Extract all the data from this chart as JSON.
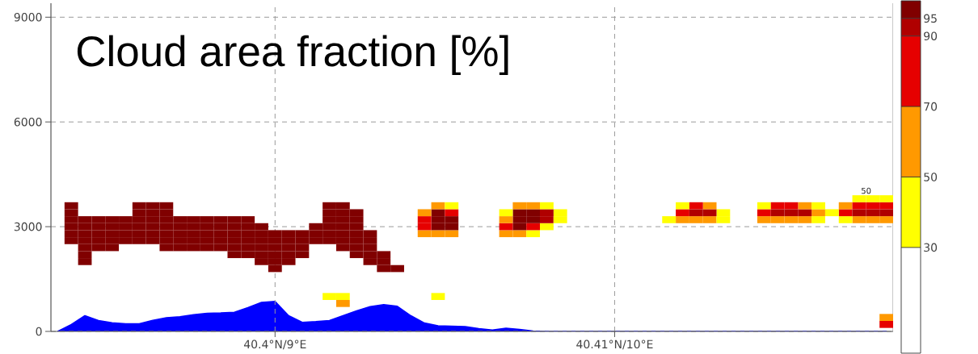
{
  "chart_data": {
    "type": "scatter",
    "title": "Cloud area fraction [%]",
    "categories": [
      null,
      null,
      null,
      null,
      null,
      null,
      null,
      null,
      null,
      null,
      null,
      null,
      null,
      null,
      null,
      null,
      "40.4°N/9°E",
      null,
      null,
      null,
      null,
      null,
      null,
      null,
      null,
      null,
      null,
      null,
      null,
      null,
      null,
      null,
      null,
      null,
      null,
      null,
      null,
      null,
      null,
      null,
      null,
      "40.41°N/10°E",
      null,
      null,
      null,
      null,
      null,
      null,
      null,
      null,
      null,
      null,
      null,
      null,
      null,
      null,
      null,
      null,
      null,
      null,
      null,
      null
    ],
    "ylim": [
      0,
      9400
    ],
    "yticks": [
      0,
      3000,
      6000,
      9000
    ],
    "grid": true,
    "marker": "square",
    "clim": [
      0,
      100
    ],
    "cticks": [
      30,
      50,
      70,
      90,
      95
    ],
    "annotations": [
      {
        "text": "50",
        "y": 3860
      }
    ],
    "series": [
      {
        "type": "area",
        "color": "#0000ff",
        "marker": "none",
        "values": [
          0,
          200,
          450,
          310,
          250,
          220,
          220,
          320,
          390,
          420,
          480,
          520,
          530,
          550,
          680,
          830,
          860,
          450,
          260,
          280,
          310,
          450,
          590,
          710,
          770,
          720,
          450,
          240,
          160,
          150,
          140,
          80,
          40,
          90,
          60,
          10,
          0,
          0,
          0,
          0,
          0,
          0,
          0,
          0,
          0,
          0,
          0,
          0,
          0,
          0,
          0,
          0,
          0,
          0,
          0,
          0,
          0,
          0,
          0,
          0,
          0,
          0
        ]
      },
      {
        "color": "#e60000",
        "values": [
          null,
          null,
          null,
          null,
          null,
          null,
          null,
          null,
          null,
          null,
          null,
          null,
          null,
          null,
          null,
          null,
          null,
          null,
          null,
          null,
          null,
          null,
          null,
          null,
          null,
          null,
          null,
          null,
          null,
          null,
          null,
          null,
          null,
          null,
          null,
          null,
          null,
          null,
          null,
          null,
          null,
          null,
          null,
          null,
          null,
          null,
          null,
          null,
          null,
          null,
          null,
          null,
          null,
          null,
          null,
          null,
          null,
          null,
          null,
          null,
          null,
          200
        ]
      },
      {
        "color": "#ff9900",
        "values": [
          null,
          null,
          null,
          null,
          null,
          null,
          null,
          null,
          null,
          null,
          null,
          null,
          null,
          null,
          null,
          null,
          null,
          null,
          null,
          null,
          null,
          null,
          null,
          null,
          null,
          null,
          null,
          null,
          null,
          null,
          null,
          null,
          null,
          null,
          null,
          null,
          null,
          null,
          null,
          null,
          null,
          null,
          null,
          null,
          null,
          null,
          null,
          null,
          null,
          null,
          null,
          null,
          null,
          null,
          null,
          null,
          null,
          null,
          null,
          null,
          null,
          400
        ]
      },
      {
        "color": "#ff9900",
        "values": [
          null,
          null,
          null,
          null,
          null,
          null,
          null,
          null,
          null,
          null,
          null,
          null,
          null,
          null,
          null,
          null,
          null,
          null,
          null,
          null,
          null,
          800,
          null,
          null,
          null,
          null,
          null,
          null,
          null,
          null,
          null,
          null,
          null,
          null,
          null,
          null,
          null,
          null,
          null,
          null,
          null,
          null,
          null,
          null,
          null,
          null,
          null,
          null,
          null,
          null,
          null,
          null,
          null,
          null,
          null,
          null,
          null,
          null,
          null,
          null,
          null,
          null
        ]
      },
      {
        "color": "#ffff00",
        "values": [
          null,
          null,
          null,
          null,
          null,
          null,
          null,
          null,
          null,
          null,
          null,
          null,
          null,
          null,
          null,
          null,
          null,
          null,
          null,
          null,
          1000,
          1000,
          null,
          null,
          null,
          null,
          null,
          null,
          1000,
          null,
          null,
          null,
          null,
          null,
          null,
          null,
          null,
          null,
          null,
          null,
          null,
          null,
          null,
          null,
          null,
          null,
          null,
          null,
          null,
          null,
          null,
          null,
          null,
          null,
          null,
          null,
          null,
          null,
          null,
          null,
          null,
          null
        ]
      },
      {
        "color": "#800000",
        "values": [
          null,
          null,
          null,
          null,
          null,
          null,
          null,
          null,
          null,
          null,
          null,
          null,
          null,
          null,
          null,
          null,
          1800,
          null,
          null,
          null,
          null,
          null,
          null,
          null,
          1800,
          1800,
          null,
          null,
          null,
          null,
          null,
          null,
          null,
          null,
          null,
          null,
          null,
          null,
          null,
          null,
          null,
          null,
          null,
          null,
          null,
          null,
          null,
          null,
          null,
          null,
          null,
          null,
          null,
          null,
          null,
          null,
          null,
          null,
          null,
          null,
          null,
          null
        ]
      },
      {
        "color": "#800000",
        "values": [
          null,
          null,
          2000,
          null,
          null,
          null,
          null,
          null,
          null,
          null,
          null,
          null,
          null,
          null,
          null,
          2000,
          2000,
          2000,
          null,
          null,
          null,
          null,
          null,
          2000,
          2000,
          null,
          null,
          null,
          null,
          null,
          null,
          null,
          null,
          null,
          null,
          null,
          null,
          null,
          null,
          null,
          null,
          null,
          null,
          null,
          null,
          null,
          null,
          null,
          null,
          null,
          null,
          null,
          null,
          null,
          null,
          null,
          null,
          null,
          null,
          null,
          null,
          null
        ]
      },
      {
        "color": "#800000",
        "values": [
          null,
          null,
          2200,
          null,
          null,
          null,
          null,
          null,
          null,
          null,
          null,
          null,
          null,
          2200,
          2200,
          2200,
          2200,
          2200,
          2200,
          null,
          null,
          null,
          2200,
          2200,
          2200,
          null,
          null,
          null,
          null,
          null,
          null,
          null,
          null,
          null,
          null,
          null,
          null,
          null,
          null,
          null,
          null,
          null,
          null,
          null,
          null,
          null,
          null,
          null,
          null,
          null,
          null,
          null,
          null,
          null,
          null,
          null,
          null,
          null,
          null,
          null,
          null,
          null
        ]
      },
      {
        "color": "#800000",
        "values": [
          null,
          null,
          2400,
          2400,
          2400,
          null,
          null,
          null,
          2400,
          2400,
          2400,
          2400,
          2400,
          2400,
          2400,
          2400,
          2400,
          2400,
          2400,
          null,
          null,
          2400,
          2400,
          2400,
          null,
          null,
          null,
          null,
          null,
          null,
          null,
          null,
          null,
          null,
          null,
          null,
          null,
          null,
          null,
          null,
          null,
          null,
          null,
          null,
          null,
          null,
          null,
          null,
          null,
          null,
          null,
          null,
          null,
          null,
          null,
          null,
          null,
          null,
          null,
          null,
          null,
          null
        ]
      },
      {
        "color": "#800000",
        "values": [
          null,
          2600,
          2600,
          2600,
          2600,
          2600,
          2600,
          2600,
          2600,
          2600,
          2600,
          2600,
          2600,
          2600,
          2600,
          2600,
          2600,
          2600,
          2600,
          2600,
          2600,
          2600,
          2600,
          2600,
          null,
          null,
          null,
          null,
          null,
          null,
          null,
          null,
          null,
          null,
          null,
          null,
          null,
          null,
          null,
          null,
          null,
          null,
          null,
          null,
          null,
          null,
          null,
          null,
          null,
          null,
          null,
          null,
          null,
          null,
          null,
          null,
          null,
          null,
          null,
          null,
          null,
          null
        ]
      },
      {
        "values": [
          null,
          2800,
          2800,
          2800,
          2800,
          2800,
          2800,
          2800,
          2800,
          2800,
          2800,
          2800,
          2800,
          2800,
          2800,
          2800,
          2800,
          2800,
          2800,
          2800,
          2800,
          2800,
          2800,
          2800,
          null,
          null,
          null,
          2800,
          2800,
          2800,
          null,
          null,
          null,
          2800,
          2800,
          2800,
          null,
          null,
          null,
          null,
          null,
          null,
          null,
          null,
          null,
          null,
          null,
          null,
          null,
          null,
          null,
          null,
          null,
          null,
          null,
          null,
          null,
          null,
          null,
          null,
          null,
          null
        ],
        "colors": [
          null,
          "#800000",
          "#800000",
          "#800000",
          "#800000",
          "#800000",
          "#800000",
          "#800000",
          "#800000",
          "#800000",
          "#800000",
          "#800000",
          "#800000",
          "#800000",
          "#800000",
          "#800000",
          "#800000",
          "#800000",
          "#800000",
          "#800000",
          "#800000",
          "#800000",
          "#800000",
          "#800000",
          null,
          null,
          null,
          "#ff9900",
          "#ff9900",
          "#ff9900",
          null,
          null,
          null,
          "#ff9900",
          "#ff9900",
          "#ffff00",
          null,
          null,
          null,
          null,
          null,
          null,
          null,
          null,
          null,
          null,
          null,
          null,
          null,
          null,
          null,
          null,
          null,
          null,
          null,
          null,
          null,
          null,
          null,
          null,
          null,
          null
        ]
      },
      {
        "values": [
          null,
          3000,
          3000,
          3000,
          3000,
          3000,
          3000,
          3000,
          3000,
          3000,
          3000,
          3000,
          3000,
          3000,
          3000,
          3000,
          null,
          null,
          null,
          3000,
          3000,
          3000,
          3000,
          null,
          null,
          null,
          null,
          3000,
          3000,
          3000,
          null,
          null,
          null,
          3000,
          3000,
          3000,
          3000,
          null,
          null,
          null,
          null,
          null,
          null,
          null,
          null,
          null,
          null,
          null,
          null,
          null,
          null,
          null,
          null,
          null,
          null,
          null,
          null,
          null,
          null,
          null,
          null,
          null
        ],
        "colors": [
          null,
          "#800000",
          "#800000",
          "#800000",
          "#800000",
          "#800000",
          "#800000",
          "#800000",
          "#800000",
          "#800000",
          "#800000",
          "#800000",
          "#800000",
          "#800000",
          "#800000",
          "#800000",
          null,
          null,
          null,
          "#800000",
          "#800000",
          "#800000",
          "#800000",
          null,
          null,
          null,
          null,
          "#e60000",
          "#800000",
          "#800000",
          null,
          null,
          null,
          "#e60000",
          "#800000",
          "#e60000",
          "#ffff00",
          null,
          null,
          null,
          null,
          null,
          null,
          null,
          null,
          null,
          null,
          null,
          null,
          null,
          null,
          null,
          null,
          null,
          null,
          null,
          null,
          null,
          null,
          null,
          null,
          null
        ]
      },
      {
        "values": [
          null,
          3200,
          3200,
          3200,
          3200,
          3200,
          3200,
          3200,
          3200,
          3200,
          3200,
          3200,
          3200,
          3200,
          3200,
          null,
          null,
          null,
          null,
          null,
          3200,
          3200,
          3200,
          null,
          null,
          null,
          null,
          3200,
          3200,
          3200,
          null,
          null,
          null,
          3200,
          3200,
          3200,
          3200,
          3200,
          null,
          null,
          null,
          null,
          null,
          null,
          null,
          3200,
          3200,
          3200,
          3200,
          3200,
          null,
          null,
          3200,
          3200,
          3200,
          3200,
          3200,
          null,
          3200,
          3200,
          3200,
          3200
        ],
        "colors": [
          null,
          "#800000",
          "#800000",
          "#800000",
          "#800000",
          "#800000",
          "#800000",
          "#800000",
          "#800000",
          "#800000",
          "#800000",
          "#800000",
          "#800000",
          "#800000",
          "#800000",
          null,
          null,
          null,
          null,
          null,
          "#800000",
          "#800000",
          "#800000",
          null,
          null,
          null,
          null,
          "#e60000",
          "#800000",
          "#800000",
          null,
          null,
          null,
          "#ff9900",
          "#800000",
          "#800000",
          "#b00000",
          "#ffff00",
          null,
          null,
          null,
          null,
          null,
          null,
          null,
          "#ffff00",
          "#ff9900",
          "#ff9900",
          "#ff9900",
          "#ffff00",
          null,
          null,
          "#ff9900",
          "#ff9900",
          "#ff9900",
          "#ff9900",
          "#ffff00",
          null,
          "#ffff00",
          "#ff9900",
          "#ff9900",
          "#ff9900"
        ]
      },
      {
        "values": [
          null,
          3400,
          null,
          null,
          null,
          null,
          3400,
          3400,
          3400,
          null,
          null,
          null,
          null,
          null,
          null,
          null,
          null,
          null,
          null,
          null,
          3400,
          3400,
          3400,
          null,
          null,
          null,
          null,
          3400,
          3400,
          3400,
          null,
          null,
          null,
          3400,
          3400,
          3400,
          3400,
          3400,
          null,
          null,
          null,
          null,
          null,
          null,
          null,
          null,
          3400,
          3400,
          3400,
          3400,
          null,
          null,
          3400,
          3400,
          3400,
          3400,
          3400,
          3400,
          3400,
          3400,
          3400,
          3400
        ],
        "colors": [
          null,
          "#800000",
          null,
          null,
          null,
          null,
          "#800000",
          "#800000",
          "#800000",
          null,
          null,
          null,
          null,
          null,
          null,
          null,
          null,
          null,
          null,
          null,
          "#800000",
          "#800000",
          "#800000",
          null,
          null,
          null,
          null,
          "#ff9900",
          "#800000",
          "#e60000",
          null,
          null,
          null,
          "#ffff00",
          "#800000",
          "#800000",
          "#b00000",
          "#ffff00",
          null,
          null,
          null,
          null,
          null,
          null,
          null,
          null,
          "#e60000",
          "#b00000",
          "#b00000",
          "#ffff00",
          null,
          null,
          "#e60000",
          "#b00000",
          "#b00000",
          "#b00000",
          "#ff9900",
          "#ffff00",
          "#e60000",
          "#b00000",
          "#b00000",
          "#b00000"
        ]
      },
      {
        "values": [
          null,
          3600,
          null,
          null,
          null,
          null,
          3600,
          3600,
          3600,
          null,
          null,
          null,
          null,
          null,
          null,
          null,
          null,
          null,
          null,
          null,
          3600,
          3600,
          null,
          null,
          null,
          null,
          null,
          null,
          3600,
          3600,
          null,
          null,
          null,
          null,
          3600,
          3600,
          3600,
          null,
          null,
          null,
          null,
          null,
          null,
          null,
          null,
          null,
          3600,
          3600,
          3600,
          null,
          null,
          null,
          3600,
          3600,
          3600,
          3600,
          3600,
          null,
          3600,
          3600,
          3600,
          3600
        ],
        "colors": [
          null,
          "#800000",
          null,
          null,
          null,
          null,
          "#800000",
          "#800000",
          "#800000",
          null,
          null,
          null,
          null,
          null,
          null,
          null,
          null,
          null,
          null,
          null,
          "#800000",
          "#800000",
          null,
          null,
          null,
          null,
          null,
          null,
          "#ff9900",
          "#ffff00",
          null,
          null,
          null,
          null,
          "#ff9900",
          "#ff9900",
          "#ffff00",
          null,
          null,
          null,
          null,
          null,
          null,
          null,
          null,
          null,
          "#ffff00",
          "#e60000",
          "#ff9900",
          null,
          null,
          null,
          "#ffff00",
          "#e60000",
          "#e60000",
          "#ff9900",
          "#ffff00",
          null,
          "#ff9900",
          "#e60000",
          "#e60000",
          "#e60000"
        ]
      },
      {
        "color": "#ffff00",
        "values": [
          null,
          null,
          null,
          null,
          null,
          null,
          null,
          null,
          null,
          null,
          null,
          null,
          null,
          null,
          null,
          null,
          null,
          null,
          null,
          null,
          null,
          null,
          null,
          null,
          null,
          null,
          null,
          null,
          null,
          null,
          null,
          null,
          null,
          null,
          null,
          null,
          null,
          null,
          null,
          null,
          null,
          null,
          null,
          null,
          null,
          null,
          null,
          null,
          null,
          null,
          null,
          null,
          null,
          null,
          null,
          null,
          null,
          null,
          null,
          3800,
          3800,
          3800
        ]
      }
    ]
  }
}
